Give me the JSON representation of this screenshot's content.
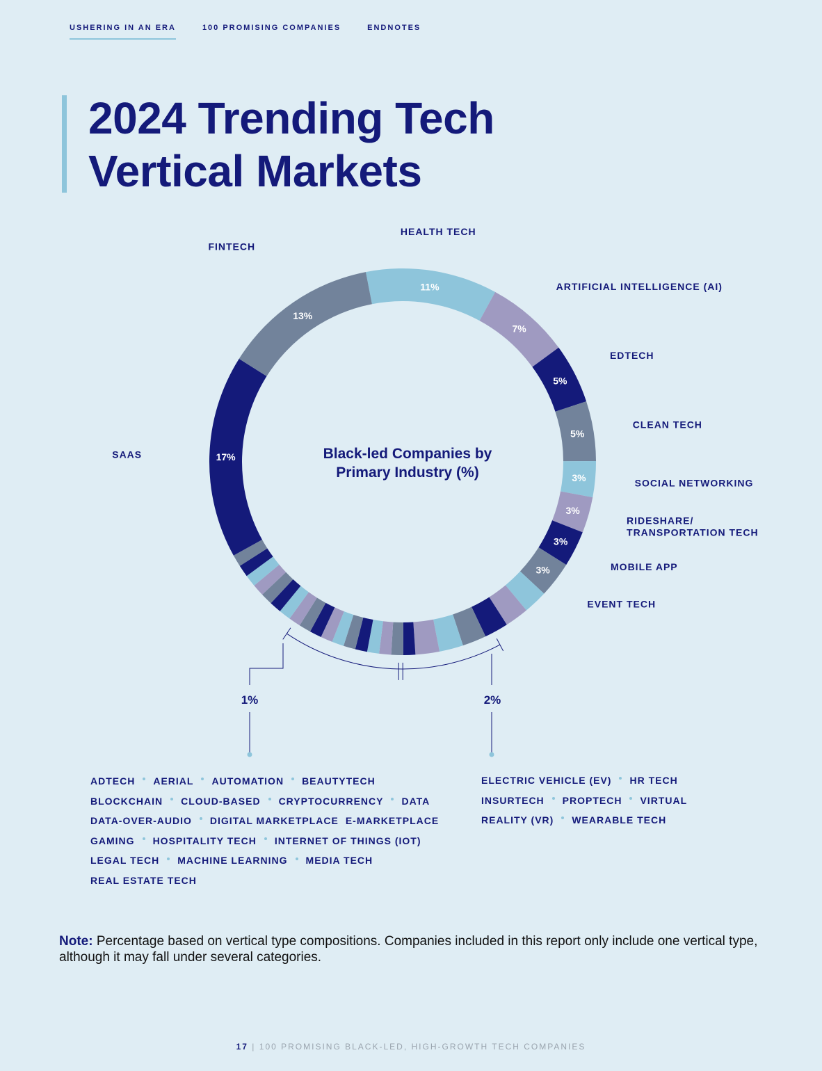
{
  "nav": {
    "items": [
      "USHERING IN AN ERA",
      "100 PROMISING COMPANIES",
      "ENDNOTES"
    ]
  },
  "title": {
    "line1": "2024 Trending Tech",
    "line2": "Vertical Markets"
  },
  "chart_data": {
    "type": "pie",
    "title_line1": "Black-led Companies by",
    "title_line2": "Primary Industry (%)",
    "colors": {
      "navy": "#141a7a",
      "slate": "#72839b",
      "sky": "#8ec5db",
      "lavender": "#9f9ac1"
    },
    "labeled": [
      {
        "name": "HEALTH TECH",
        "value": 11,
        "label": "11%",
        "color": "sky"
      },
      {
        "name": "ARTIFICIAL INTELLIGENCE (AI)",
        "value": 7,
        "label": "7%",
        "color": "lavender"
      },
      {
        "name": "EDTECH",
        "value": 5,
        "label": "5%",
        "color": "navy"
      },
      {
        "name": "CLEAN TECH",
        "value": 5,
        "label": "5%",
        "color": "slate"
      },
      {
        "name": "SOCIAL NETWORKING",
        "value": 3,
        "label": "3%",
        "color": "sky"
      },
      {
        "name": "RIDESHARE/ TRANSPORTATION TECH",
        "name_lines": [
          "RIDESHARE/",
          "TRANSPORTATION TECH"
        ],
        "value": 3,
        "label": "3%",
        "color": "lavender"
      },
      {
        "name": "MOBILE APP",
        "value": 3,
        "label": "3%",
        "color": "navy"
      },
      {
        "name": "EVENT TECH",
        "value": 3,
        "label": "3%",
        "color": "slate"
      }
    ],
    "two_percent": {
      "label": "2%",
      "value": 2,
      "colors": [
        "sky",
        "lavender",
        "navy",
        "slate",
        "sky",
        "lavender"
      ]
    },
    "one_percent": {
      "label": "1%",
      "value": 1,
      "colors": [
        "navy",
        "slate",
        "lavender",
        "sky",
        "navy",
        "slate",
        "sky",
        "lavender",
        "navy",
        "slate",
        "lavender",
        "sky",
        "navy",
        "slate",
        "lavender",
        "sky",
        "navy",
        "slate"
      ]
    },
    "tail": [
      {
        "name": "SAAS",
        "value": 17,
        "label": "17%",
        "color": "navy"
      },
      {
        "name": "FINTECH",
        "value": 13,
        "label": "13%",
        "color": "slate"
      }
    ]
  },
  "one_percent_list": [
    [
      "ADTECH",
      "AERIAL",
      "AUTOMATION",
      "BEAUTYTECH"
    ],
    [
      "BLOCKCHAIN",
      "CLOUD-BASED",
      "CRYPTOCURRENCY",
      "DATA"
    ],
    [
      "DATA-OVER-AUDIO",
      "DIGITAL MARKETPLACE",
      "E-MARKETPLACE"
    ],
    [
      "GAMING",
      "HOSPITALITY TECH",
      "INTERNET OF THINGS (IOT)"
    ],
    [
      "LEGAL TECH",
      "MACHINE LEARNING",
      "MEDIA TECH"
    ],
    [
      "REAL ESTATE TECH"
    ]
  ],
  "two_percent_list": [
    [
      "ELECTRIC VEHICLE (EV)",
      "HR TECH"
    ],
    [
      "INSURTECH",
      "PROPTECH",
      "VIRTUAL"
    ],
    [
      "REALITY (VR)",
      "WEARABLE TECH"
    ]
  ],
  "note": {
    "label": "Note:",
    "text": " Percentage based on vertical type compositions. Companies included in this report only include one vertical type, although it may fall under several categories."
  },
  "footer": {
    "page": "17",
    "sep": " | ",
    "text": "100 PROMISING BLACK-LED, HIGH-GROWTH TECH COMPANIES"
  }
}
